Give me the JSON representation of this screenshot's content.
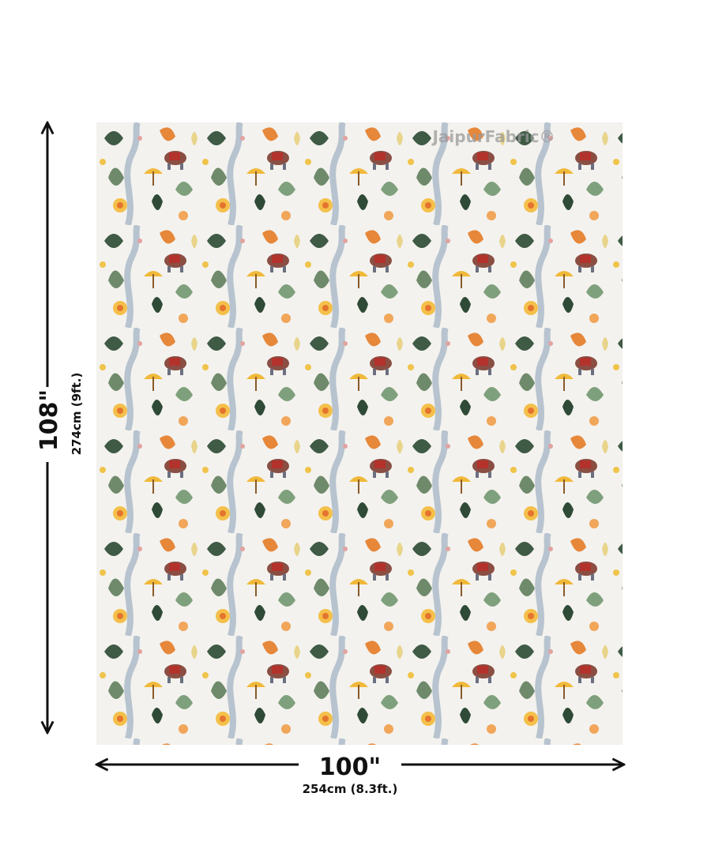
{
  "product": {
    "watermark": "JaipurFabric®",
    "height": {
      "label": "108\"",
      "detail": "274cm (9ft.)"
    },
    "width": {
      "label": "100\"",
      "detail": "254cm (8.3ft.)"
    }
  }
}
